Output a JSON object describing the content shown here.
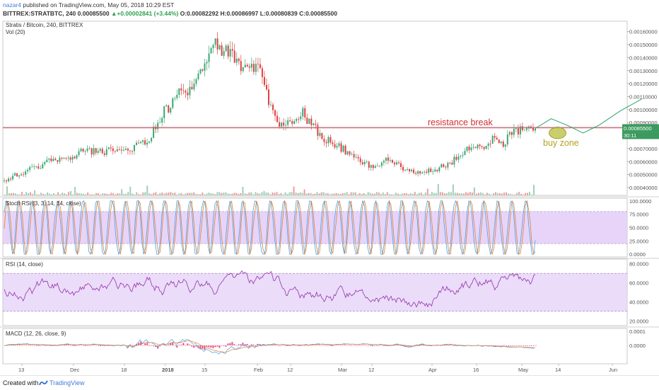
{
  "header": {
    "author": "nazar4",
    "published_text": "published on TradingView.com, May 05, 2018 10:29 EST",
    "symbol": "BITTREX:STRATBTC, 240",
    "last_price": "0.00085500",
    "change": "+0.00002841 (+3.44%)",
    "change_arrow": "▲",
    "ohlc": [
      {
        "label": "O:",
        "value": "0.00082292"
      },
      {
        "label": "H:",
        "value": "0.00086997"
      },
      {
        "label": "L:",
        "value": "0.00080839"
      },
      {
        "label": "C:",
        "value": "0.00085500"
      }
    ]
  },
  "chart_data": [
    {
      "type": "candlestick",
      "title": "Stratis / Bitcoin, 240, BITTREX",
      "volume_label": "Vol (20)",
      "ylim": [
        0.00034,
        0.00168
      ],
      "yticks": [
        "0.00160000",
        "0.00150000",
        "0.00140000",
        "0.00130000",
        "0.00120000",
        "0.00110000",
        "0.00100000",
        "0.00090000",
        "0.00070000",
        "0.00060000",
        "0.00050000",
        "0.00040000"
      ],
      "price_labels": [
        "0.00085500",
        "30:11"
      ],
      "series": [
        {
          "name": "price",
          "x": [
            0,
            3,
            6,
            9,
            12,
            15,
            18,
            21,
            24,
            27,
            30,
            33,
            36,
            39,
            42,
            45,
            48,
            50,
            52,
            54,
            56,
            58,
            60,
            62,
            64,
            66,
            68,
            70,
            72,
            74,
            76,
            78,
            80,
            82,
            84,
            86,
            88,
            90,
            92,
            94,
            96,
            98,
            100
          ],
          "values": [
            0.00045,
            0.00051,
            0.00055,
            0.00062,
            0.00063,
            0.00068,
            0.00067,
            0.00069,
            0.00071,
            0.00075,
            0.00098,
            0.00112,
            0.0012,
            0.0015,
            0.00145,
            0.00128,
            0.00135,
            0.00104,
            0.00088,
            0.0009,
            0.00098,
            0.00088,
            0.00079,
            0.00074,
            0.00069,
            0.00062,
            0.00058,
            0.00055,
            0.00062,
            0.00058,
            0.00052,
            0.00051,
            0.00054,
            0.00055,
            0.00059,
            0.00065,
            0.00071,
            0.00069,
            0.00077,
            0.00073,
            0.00085,
            0.00083,
            0.000855
          ]
        }
      ],
      "resistance_level": 0.00086,
      "projection": {
        "x": [
          100,
          103,
          106,
          109,
          112,
          116,
          120
        ],
        "values": [
          0.000855,
          0.00093,
          0.00088,
          0.00082,
          0.00088,
          0.00099,
          0.00108
        ]
      },
      "annotations": [
        "resistance break",
        "buy zone"
      ]
    },
    {
      "type": "line",
      "title": "Stoch RSI (3, 3, 14, 14, close)",
      "ylim": [
        -5,
        105
      ],
      "yticks": [
        "100.0000",
        "75.0000",
        "50.0000",
        "25.0000",
        "0.0000"
      ],
      "bands": [
        20,
        80
      ]
    },
    {
      "type": "line",
      "title": "RSI (14, close)",
      "ylim": [
        15,
        85
      ],
      "yticks": [
        "80.0000",
        "60.0000",
        "40.0000",
        "20.0000"
      ],
      "bands": [
        30,
        70
      ]
    },
    {
      "type": "line",
      "title": "MACD (12, 26, close, 9)",
      "ylim": [
        -0.00013,
        0.00012
      ],
      "yticks": [
        "0.0001",
        "0.0000"
      ]
    }
  ],
  "x_axis": {
    "labels": [
      "13",
      "Dec",
      "18",
      "2018",
      "15",
      "Feb",
      "12",
      "Mar",
      "12",
      "Apr",
      "16",
      "May",
      "14",
      "Jun"
    ]
  },
  "colors": {
    "up": "#3aa675",
    "down": "#e04040",
    "volume": "#e8a0a0",
    "resistance": "#e05050",
    "projection": "#27a66b",
    "buy_zone_fill": "#b8bf3a",
    "buy_zone_text": "#b8a020",
    "resistance_text": "#d03030",
    "stoch_k": "#4aa0e8",
    "stoch_d": "#e08030",
    "rsi": "#9232a8",
    "band_fill": "#e3cdf7"
  },
  "footer": {
    "created": "Created with",
    "brand": "TradingView"
  }
}
